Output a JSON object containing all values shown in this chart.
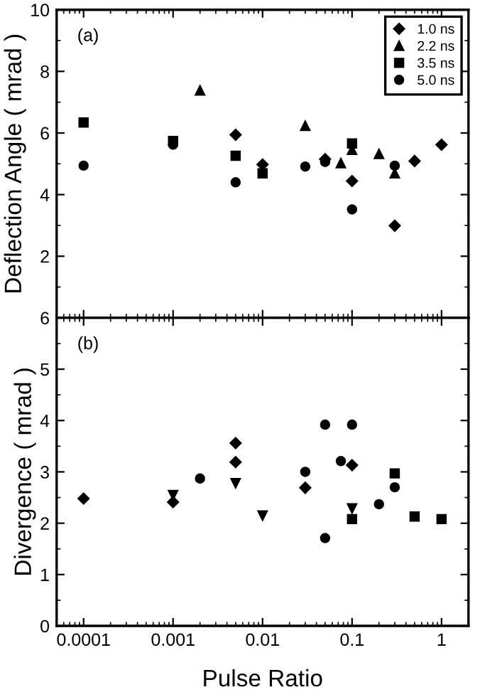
{
  "chart_data": [
    {
      "type": "scatter",
      "ylabel": "Deflection Angle ( mrad )",
      "annotations": [
        "(a)"
      ],
      "log": "x",
      "xlim": [
        5e-05,
        2
      ],
      "xticks": [
        0.0001,
        0.001,
        0.01,
        0.1,
        1
      ],
      "ylim": [
        0,
        10
      ],
      "yticks": [
        {
          "value": 0,
          "label": null
        },
        2,
        4,
        6,
        8,
        10
      ],
      "tick_labels": "y",
      "legend": "top right",
      "series": [
        {
          "name": "1.0 ns",
          "color": "#000000",
          "marker": "diamond",
          "x": [
            0.005,
            0.01,
            0.05,
            0.1,
            0.3,
            0.5,
            1
          ],
          "values": [
            5.94,
            4.98,
            5.15,
            4.44,
            2.99,
            5.09,
            5.62
          ]
        },
        {
          "name": "2.2 ns",
          "color": "#000000",
          "marker": "triangle",
          "x": [
            0.002,
            0.03,
            0.075,
            0.1,
            0.2,
            0.3
          ],
          "values": [
            7.38,
            6.23,
            5.02,
            5.45,
            5.32,
            4.69
          ]
        },
        {
          "name": "3.5 ns",
          "color": "#000000",
          "marker": "square",
          "x": [
            0.0001,
            0.001,
            0.005,
            0.01,
            0.1
          ],
          "values": [
            6.34,
            5.74,
            5.26,
            4.69,
            5.66
          ]
        },
        {
          "name": "5.0 ns",
          "color": "#000000",
          "marker": "circle",
          "x": [
            0.0001,
            0.001,
            0.005,
            0.03,
            0.05,
            0.1,
            0.3
          ],
          "values": [
            4.94,
            5.62,
            4.4,
            4.91,
            5.06,
            3.52,
            4.94
          ]
        }
      ]
    },
    {
      "type": "scatter",
      "xlabel": "Pulse Ratio",
      "ylabel": "Divergence ( mrad )",
      "annotations": [
        "(b)"
      ],
      "log": "x",
      "xlim": [
        5e-05,
        2
      ],
      "xticks": [
        0.0001,
        0.001,
        0.01,
        0.1,
        1
      ],
      "ylim": [
        0,
        6
      ],
      "yticks": [
        0,
        1,
        2,
        3,
        4,
        5,
        6
      ],
      "series": [
        {
          "color": "#000000",
          "marker": "diamond",
          "x": [
            0.0001,
            0.001,
            0.005,
            0.005,
            0.03,
            0.1
          ],
          "values": [
            2.48,
            2.41,
            3.56,
            3.19,
            2.69,
            3.13
          ]
        },
        {
          "color": "#000000",
          "marker": "circle",
          "x": [
            0.002,
            0.03,
            0.05,
            0.05,
            0.075,
            0.1,
            0.2,
            0.3
          ],
          "values": [
            2.87,
            3.0,
            3.92,
            1.71,
            3.21,
            3.92,
            2.37,
            2.7
          ]
        },
        {
          "color": "#000000",
          "marker": "square",
          "x": [
            0.1,
            0.3,
            0.5,
            1
          ],
          "values": [
            2.08,
            2.97,
            2.13,
            2.08
          ]
        },
        {
          "color": "#000000",
          "marker": "triangle_down",
          "x": [
            0.001,
            0.005,
            0.01,
            0.1
          ],
          "values": [
            2.55,
            2.78,
            2.15,
            2.29
          ]
        }
      ]
    }
  ]
}
